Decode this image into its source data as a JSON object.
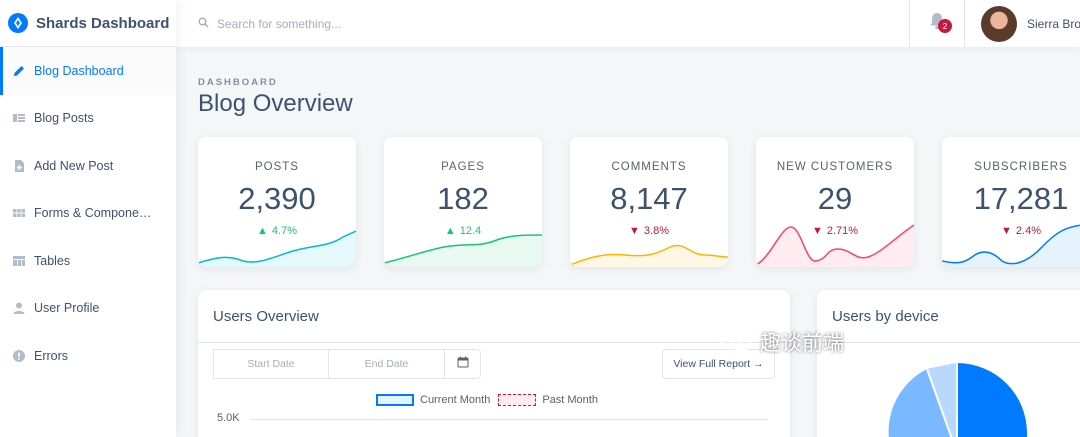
{
  "brand": {
    "name": "Shards Dashboard"
  },
  "sidebar": {
    "items": [
      {
        "label": "Blog Dashboard",
        "icon": "pencil-icon",
        "active": true
      },
      {
        "label": "Blog Posts",
        "icon": "list-icon"
      },
      {
        "label": "Add New Post",
        "icon": "note-add-icon"
      },
      {
        "label": "Forms & Compone…",
        "icon": "grid-icon"
      },
      {
        "label": "Tables",
        "icon": "table-icon"
      },
      {
        "label": "User Profile",
        "icon": "person-icon"
      },
      {
        "label": "Errors",
        "icon": "error-icon"
      }
    ]
  },
  "topbar": {
    "search_placeholder": "Search for something...",
    "notifications_count": "2",
    "user_name": "Sierra Brooks"
  },
  "page": {
    "subtitle": "DASHBOARD",
    "title": "Blog Overview"
  },
  "stats": [
    {
      "label": "POSTS",
      "value": "2,390",
      "change": "4.7%",
      "direction": "up",
      "color": "#00b8d8"
    },
    {
      "label": "PAGES",
      "value": "182",
      "change": "12.4",
      "direction": "up",
      "color": "#17c671"
    },
    {
      "label": "COMMENTS",
      "value": "8,147",
      "change": "3.8%",
      "direction": "down",
      "color": "#ffb400"
    },
    {
      "label": "NEW CUSTOMERS",
      "value": "29",
      "change": "2.71%",
      "direction": "down",
      "color": "#ff4169"
    },
    {
      "label": "SUBSCRIBERS",
      "value": "17,281",
      "change": "2.4%",
      "direction": "down",
      "color": "#007bff"
    }
  ],
  "users_overview": {
    "title": "Users Overview",
    "start_date_placeholder": "Start Date",
    "end_date_placeholder": "End Date",
    "report_button": "View Full Report →",
    "legend_current": "Current Month",
    "legend_past": "Past Month",
    "ytick_top": "5.0K"
  },
  "users_by_device": {
    "title": "Users by device"
  },
  "watermark": {
    "text": "趣谈前端"
  }
}
